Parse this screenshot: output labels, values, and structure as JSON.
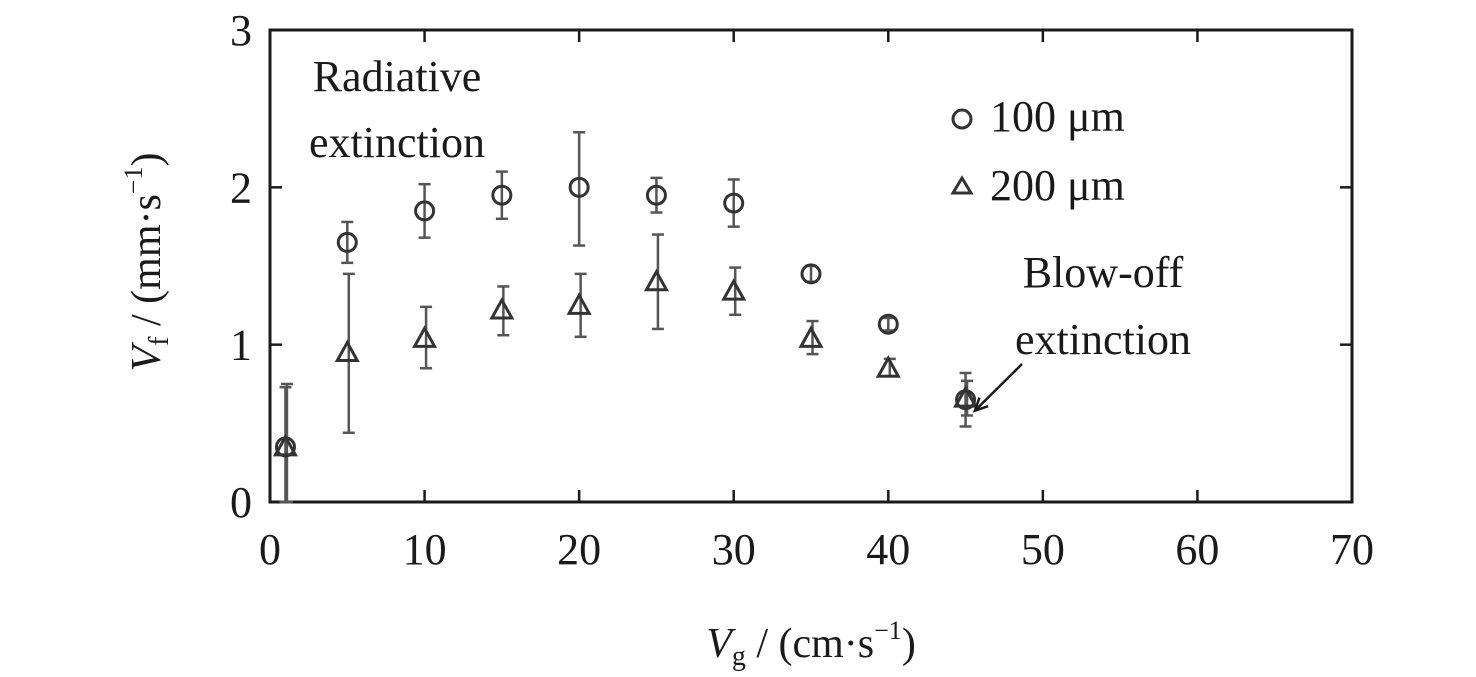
{
  "chart_data": {
    "type": "scatter",
    "xlabel": {
      "main": "V",
      "sub": "g",
      "unit": " / (cm·s",
      "exp": "−1",
      "close": ")"
    },
    "ylabel": {
      "main": "V",
      "sub": "f",
      "unit": " / (mm·s",
      "exp": "−1",
      "close": ")"
    },
    "xlim": [
      0,
      70
    ],
    "ylim": [
      0,
      3
    ],
    "xticks": [
      0,
      10,
      20,
      30,
      40,
      50,
      60,
      70
    ],
    "yticks": [
      0,
      1,
      2,
      3
    ],
    "grid": false,
    "legend_position": "top-right",
    "series": [
      {
        "name": "100 μm",
        "marker": "circle",
        "points": [
          {
            "x": 1,
            "y": 0.35,
            "lo": 0.0,
            "hi": 0.73
          },
          {
            "x": 5,
            "y": 1.65,
            "lo": 1.52,
            "hi": 1.78
          },
          {
            "x": 10,
            "y": 1.85,
            "lo": 1.68,
            "hi": 2.02
          },
          {
            "x": 15,
            "y": 1.95,
            "lo": 1.8,
            "hi": 2.1
          },
          {
            "x": 20,
            "y": 2.0,
            "lo": 1.63,
            "hi": 2.35
          },
          {
            "x": 25,
            "y": 1.95,
            "lo": 1.84,
            "hi": 2.06
          },
          {
            "x": 30,
            "y": 1.9,
            "lo": 1.75,
            "hi": 2.05
          },
          {
            "x": 35,
            "y": 1.45,
            "lo": 1.4,
            "hi": 1.5
          },
          {
            "x": 40,
            "y": 1.13,
            "lo": 1.09,
            "hi": 1.17
          },
          {
            "x": 45,
            "y": 0.65,
            "lo": 0.48,
            "hi": 0.82
          }
        ]
      },
      {
        "name": "200 μm",
        "marker": "triangle",
        "points": [
          {
            "x": 1,
            "y": 0.35,
            "lo": 0.0,
            "hi": 0.75
          },
          {
            "x": 5,
            "y": 0.95,
            "lo": 0.44,
            "hi": 1.45
          },
          {
            "x": 10,
            "y": 1.04,
            "lo": 0.85,
            "hi": 1.24
          },
          {
            "x": 15,
            "y": 1.22,
            "lo": 1.06,
            "hi": 1.37
          },
          {
            "x": 20,
            "y": 1.25,
            "lo": 1.05,
            "hi": 1.45
          },
          {
            "x": 25,
            "y": 1.4,
            "lo": 1.1,
            "hi": 1.7
          },
          {
            "x": 30,
            "y": 1.34,
            "lo": 1.19,
            "hi": 1.49
          },
          {
            "x": 35,
            "y": 1.04,
            "lo": 0.94,
            "hi": 1.15
          },
          {
            "x": 40,
            "y": 0.85,
            "lo": 0.8,
            "hi": 0.91
          },
          {
            "x": 45,
            "y": 0.66,
            "lo": 0.55,
            "hi": 0.77
          }
        ]
      }
    ],
    "annotations": [
      {
        "id": "radiative",
        "lines": [
          "Radiative",
          "extinction"
        ]
      },
      {
        "id": "blowoff",
        "lines": [
          "Blow-off",
          "extinction"
        ],
        "arrow_to": {
          "x": 45.6,
          "y": 0.58
        }
      }
    ]
  }
}
